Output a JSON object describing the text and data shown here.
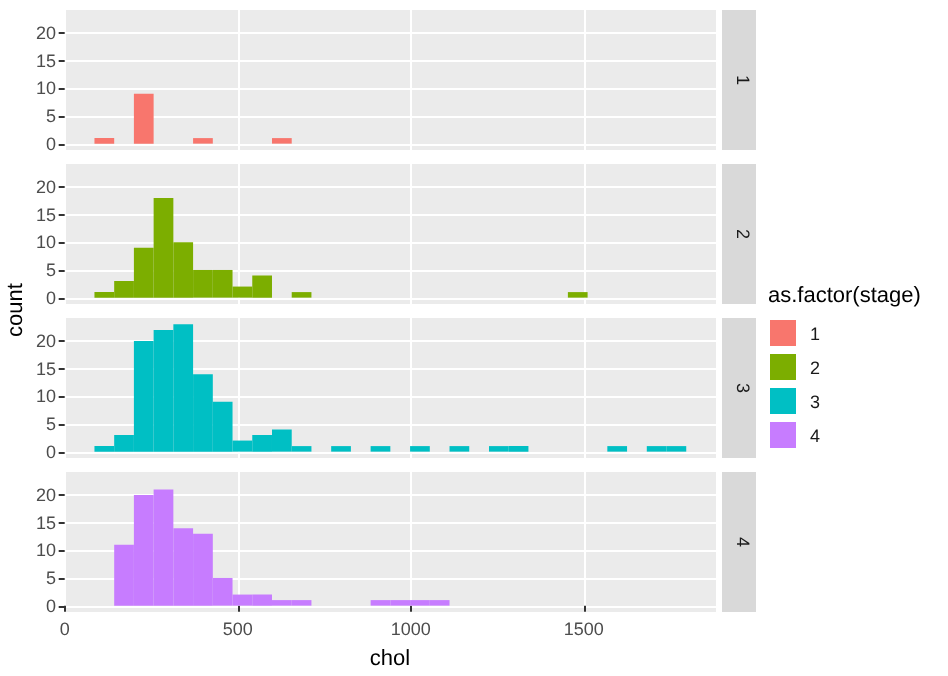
{
  "chart_data": [
    {
      "type": "histogram",
      "bins": [
        86,
        143,
        200,
        257,
        314,
        371,
        428,
        485,
        542,
        599,
        656,
        713,
        770,
        827,
        884,
        941,
        998,
        1055,
        1112,
        1169,
        1226,
        1283,
        1340,
        1397,
        1454,
        1511,
        1568,
        1625,
        1682,
        1739,
        1796
      ],
      "series": [
        {
          "name": "1",
          "color": "#f8766d",
          "values": [
            1,
            0,
            9,
            0,
            0,
            1,
            0,
            0,
            0,
            1,
            0,
            0,
            0,
            0,
            0,
            0,
            0,
            0,
            0,
            0,
            0,
            0,
            0,
            0,
            0,
            0,
            0,
            0,
            0,
            0
          ]
        }
      ],
      "xlim": [
        -2,
        1882
      ],
      "xticks": [
        0,
        500,
        1000,
        1500
      ],
      "ylim": [
        -1.15,
        24.15
      ],
      "yticks": [
        0,
        5,
        10,
        15,
        20
      ],
      "tick_labels": "y",
      "grid": true,
      "legend": "right",
      "legend_title": "as.factor(stage)"
    },
    {
      "type": "histogram",
      "ylabel": "count",
      "bins": [
        86,
        143,
        200,
        257,
        314,
        371,
        428,
        485,
        542,
        599,
        656,
        713,
        770,
        827,
        884,
        941,
        998,
        1055,
        1112,
        1169,
        1226,
        1283,
        1340,
        1397,
        1454,
        1511,
        1568,
        1625,
        1682,
        1739,
        1796
      ],
      "series": [
        {
          "name": "2",
          "color": "#7cae00",
          "values": [
            1,
            3,
            9,
            18,
            10,
            5,
            5,
            2,
            4,
            0,
            1,
            0,
            0,
            0,
            0,
            0,
            0,
            0,
            0,
            0,
            0,
            0,
            0,
            0,
            1,
            0,
            0,
            0,
            0,
            0
          ]
        }
      ],
      "xlim": [
        -2,
        1882
      ],
      "xticks": [
        0,
        500,
        1000,
        1500
      ],
      "ylim": [
        -1.15,
        24.15
      ],
      "yticks": [
        0,
        5,
        10,
        15,
        20
      ],
      "tick_labels": "y",
      "grid": true,
      "legend": "right"
    },
    {
      "type": "histogram",
      "bins": [
        86,
        143,
        200,
        257,
        314,
        371,
        428,
        485,
        542,
        599,
        656,
        713,
        770,
        827,
        884,
        941,
        998,
        1055,
        1112,
        1169,
        1226,
        1283,
        1340,
        1397,
        1454,
        1511,
        1568,
        1625,
        1682,
        1739,
        1796
      ],
      "series": [
        {
          "name": "3",
          "color": "#00bfc4",
          "values": [
            1,
            3,
            20,
            22,
            23,
            14,
            9,
            2,
            3,
            4,
            1,
            0,
            1,
            0,
            1,
            0,
            1,
            0,
            1,
            0,
            1,
            1,
            0,
            0,
            0,
            0,
            1,
            0,
            1,
            1
          ]
        }
      ],
      "xlim": [
        -2,
        1882
      ],
      "xticks": [
        0,
        500,
        1000,
        1500
      ],
      "ylim": [
        -1.15,
        24.15
      ],
      "yticks": [
        0,
        5,
        10,
        15,
        20
      ],
      "tick_labels": "y",
      "grid": true,
      "legend": "right"
    },
    {
      "type": "histogram",
      "xlabel": "chol",
      "bins": [
        86,
        143,
        200,
        257,
        314,
        371,
        428,
        485,
        542,
        599,
        656,
        713,
        770,
        827,
        884,
        941,
        998,
        1055,
        1112,
        1169,
        1226,
        1283,
        1340,
        1397,
        1454,
        1511,
        1568,
        1625,
        1682,
        1739,
        1796
      ],
      "series": [
        {
          "name": "4",
          "color": "#c77cff",
          "values": [
            0,
            11,
            20,
            21,
            14,
            13,
            5,
            2,
            2,
            1,
            1,
            0,
            0,
            0,
            1,
            1,
            1,
            1,
            0,
            0,
            0,
            0,
            0,
            0,
            0,
            0,
            0,
            0,
            0,
            0
          ]
        }
      ],
      "xlim": [
        -2,
        1882
      ],
      "xticks": [
        0,
        500,
        1000,
        1500
      ],
      "ylim": [
        -1.15,
        24.15
      ],
      "yticks": [
        0,
        5,
        10,
        15,
        20
      ],
      "grid": true,
      "legend": "right"
    }
  ]
}
